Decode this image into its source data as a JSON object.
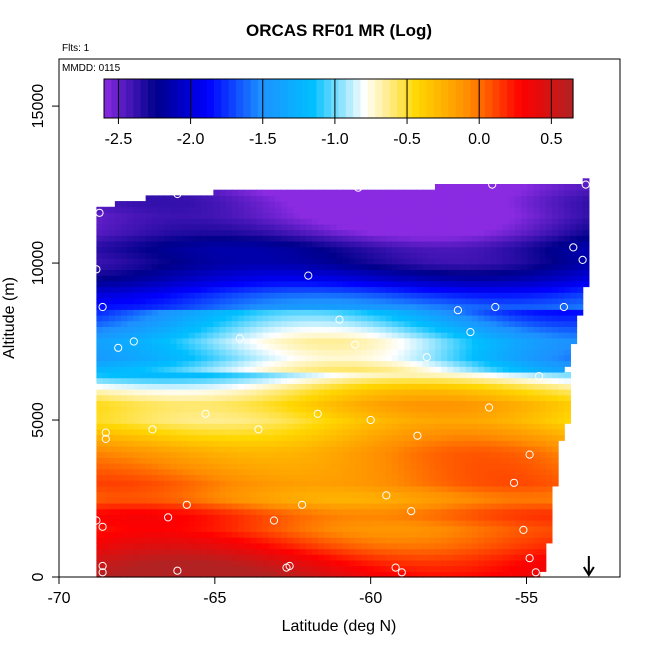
{
  "chart_data": {
    "type": "heatmap",
    "title": "ORCAS RF01 MR (Log)",
    "flight_note": "Flts: 1",
    "date_note": "MMDD: 0115",
    "xlabel": "Latitude (deg N)",
    "ylabel": "Altitude (m)",
    "xlim": [
      -70,
      -52
    ],
    "ylim": [
      0,
      16500
    ],
    "x_ticks": [
      -70,
      -65,
      -60,
      -55
    ],
    "x_tick_labels": [
      "-70",
      "-65",
      "-60",
      "-55"
    ],
    "y_ticks": [
      0,
      5000,
      10000,
      15000
    ],
    "y_tick_labels": [
      "0",
      "5000",
      "10000",
      "15000"
    ],
    "colorbar": {
      "range": [
        -2.6,
        0.65
      ],
      "ticks": [
        -2.5,
        -2.0,
        -1.5,
        -1.0,
        -0.5,
        0.0,
        0.5
      ],
      "tick_labels": [
        "-2.5",
        "-2.0",
        "-1.5",
        "-1.0",
        "-0.5",
        "0.0",
        "0.5"
      ],
      "colors": [
        "#8a2be2",
        "#00008b",
        "#0000ff",
        "#1e90ff",
        "#00bfff",
        "#ffffff",
        "#ffd700",
        "#ff8c00",
        "#ff0000",
        "#b22222"
      ]
    },
    "field": {
      "lat_range": [
        -68.8,
        -53.0
      ],
      "alt_range": [
        0,
        12700
      ],
      "top_edge_lat": [
        -68.8,
        -68.2,
        -67.0,
        -65.0,
        -63.0,
        -61.0,
        -59.0,
        -57.0,
        -55.0,
        -53.3,
        -53.0
      ],
      "top_edge_alt": [
        11800,
        11900,
        12100,
        12250,
        12300,
        12350,
        12400,
        12450,
        12500,
        12500,
        12700
      ],
      "right_edge_alt": [
        0,
        1500,
        4100,
        5400,
        6600,
        8400,
        9300,
        10100,
        12700
      ],
      "right_edge_lat": [
        -54.5,
        -54.2,
        -54.0,
        -53.5,
        -53.7,
        -53.3,
        -53.1,
        -53.0,
        -53.0
      ],
      "profile_alt": [
        0,
        500,
        1000,
        1500,
        2000,
        2500,
        3000,
        3500,
        4000,
        4500,
        5000,
        5500,
        6000,
        6500,
        7000,
        7500,
        8000,
        8500,
        9000,
        9500,
        10000,
        10500,
        11000,
        11500,
        12000,
        12500
      ],
      "profile_val": [
        0.5,
        0.35,
        0.15,
        0.0,
        0.05,
        -0.2,
        -0.1,
        -0.15,
        -0.2,
        -0.35,
        -0.5,
        -0.4,
        -0.6,
        -1.0,
        -1.2,
        -1.1,
        -1.3,
        -1.5,
        -1.7,
        -2.0,
        -2.2,
        -2.2,
        -2.4,
        -2.5,
        -2.5,
        -2.6
      ]
    },
    "sample_points": [
      {
        "lat": -68.7,
        "alt": 11600
      },
      {
        "lat": -66.2,
        "alt": 12200
      },
      {
        "lat": -60.4,
        "alt": 12400
      },
      {
        "lat": -56.1,
        "alt": 12500
      },
      {
        "lat": -53.1,
        "alt": 12500
      },
      {
        "lat": -68.8,
        "alt": 9800
      },
      {
        "lat": -53.5,
        "alt": 10500
      },
      {
        "lat": -62.0,
        "alt": 9600
      },
      {
        "lat": -53.2,
        "alt": 10100
      },
      {
        "lat": -68.6,
        "alt": 8600
      },
      {
        "lat": -61.0,
        "alt": 8200
      },
      {
        "lat": -57.2,
        "alt": 8500
      },
      {
        "lat": -53.8,
        "alt": 8600
      },
      {
        "lat": -68.1,
        "alt": 7300
      },
      {
        "lat": -67.6,
        "alt": 7500
      },
      {
        "lat": -64.2,
        "alt": 7600
      },
      {
        "lat": -60.5,
        "alt": 7400
      },
      {
        "lat": -56.8,
        "alt": 7800
      },
      {
        "lat": -56.0,
        "alt": 8600
      },
      {
        "lat": -58.2,
        "alt": 7000
      },
      {
        "lat": -54.6,
        "alt": 6400
      },
      {
        "lat": -68.9,
        "alt": 6100
      },
      {
        "lat": -65.3,
        "alt": 5200
      },
      {
        "lat": -61.7,
        "alt": 5200
      },
      {
        "lat": -60.0,
        "alt": 5000
      },
      {
        "lat": -56.2,
        "alt": 5400
      },
      {
        "lat": -68.5,
        "alt": 4600
      },
      {
        "lat": -68.5,
        "alt": 4400
      },
      {
        "lat": -67.0,
        "alt": 4700
      },
      {
        "lat": -63.6,
        "alt": 4700
      },
      {
        "lat": -58.5,
        "alt": 4500
      },
      {
        "lat": -54.9,
        "alt": 3900
      },
      {
        "lat": -55.4,
        "alt": 3000
      },
      {
        "lat": -59.5,
        "alt": 2600
      },
      {
        "lat": -65.9,
        "alt": 2300
      },
      {
        "lat": -62.2,
        "alt": 2300
      },
      {
        "lat": -58.7,
        "alt": 2100
      },
      {
        "lat": -68.8,
        "alt": 1800
      },
      {
        "lat": -68.6,
        "alt": 1600
      },
      {
        "lat": -66.5,
        "alt": 1900
      },
      {
        "lat": -63.1,
        "alt": 1800
      },
      {
        "lat": -55.1,
        "alt": 1500
      },
      {
        "lat": -54.9,
        "alt": 600
      },
      {
        "lat": -68.6,
        "alt": 350
      },
      {
        "lat": -68.6,
        "alt": 150
      },
      {
        "lat": -66.2,
        "alt": 200
      },
      {
        "lat": -62.7,
        "alt": 300
      },
      {
        "lat": -62.6,
        "alt": 350
      },
      {
        "lat": -59.2,
        "alt": 300
      },
      {
        "lat": -59.0,
        "alt": 150
      },
      {
        "lat": -54.7,
        "alt": 150
      }
    ],
    "arrow_lat": -53.0
  }
}
